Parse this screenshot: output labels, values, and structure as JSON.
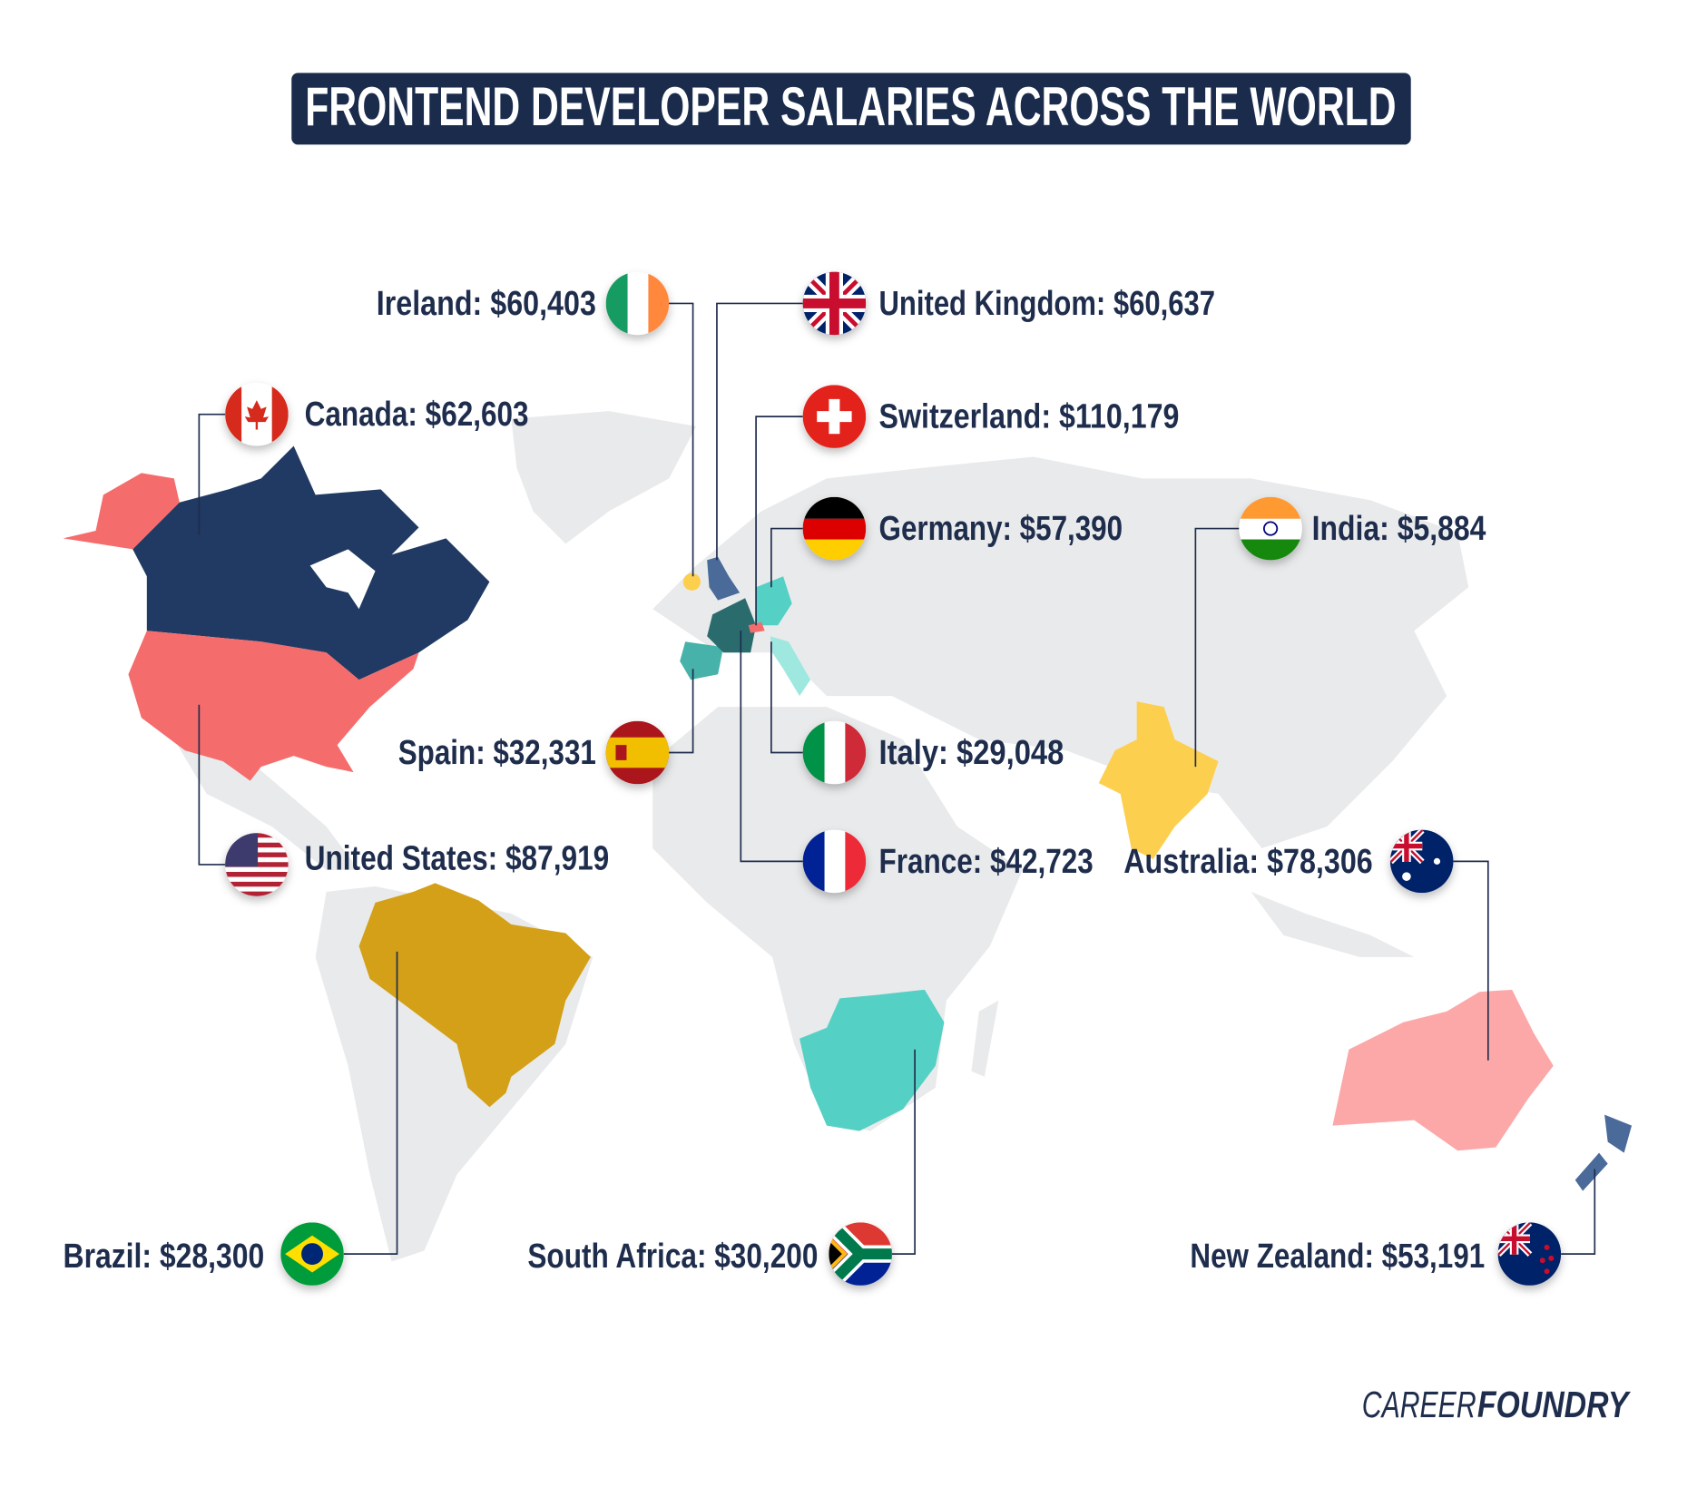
{
  "title": "FRONTEND DEVELOPER SALARIES ACROSS THE WORLD",
  "countries": [
    "Ireland: $60,403",
    "United Kingdom: $60,637",
    "Canada: $62,603",
    "Switzerland: $110,179",
    "Germany: $57,390",
    "India: $5,884",
    "Spain: $32,331",
    "Italy: $29,048",
    "United States: $87,919",
    "France: $42,723",
    "Australia: $78,306",
    "Brazil: $28,300",
    "South Africa: $30,200",
    "New Zealand: $53,191"
  ],
  "brand": {
    "light": "CAREER",
    "bold": "FOUNDRY"
  }
}
